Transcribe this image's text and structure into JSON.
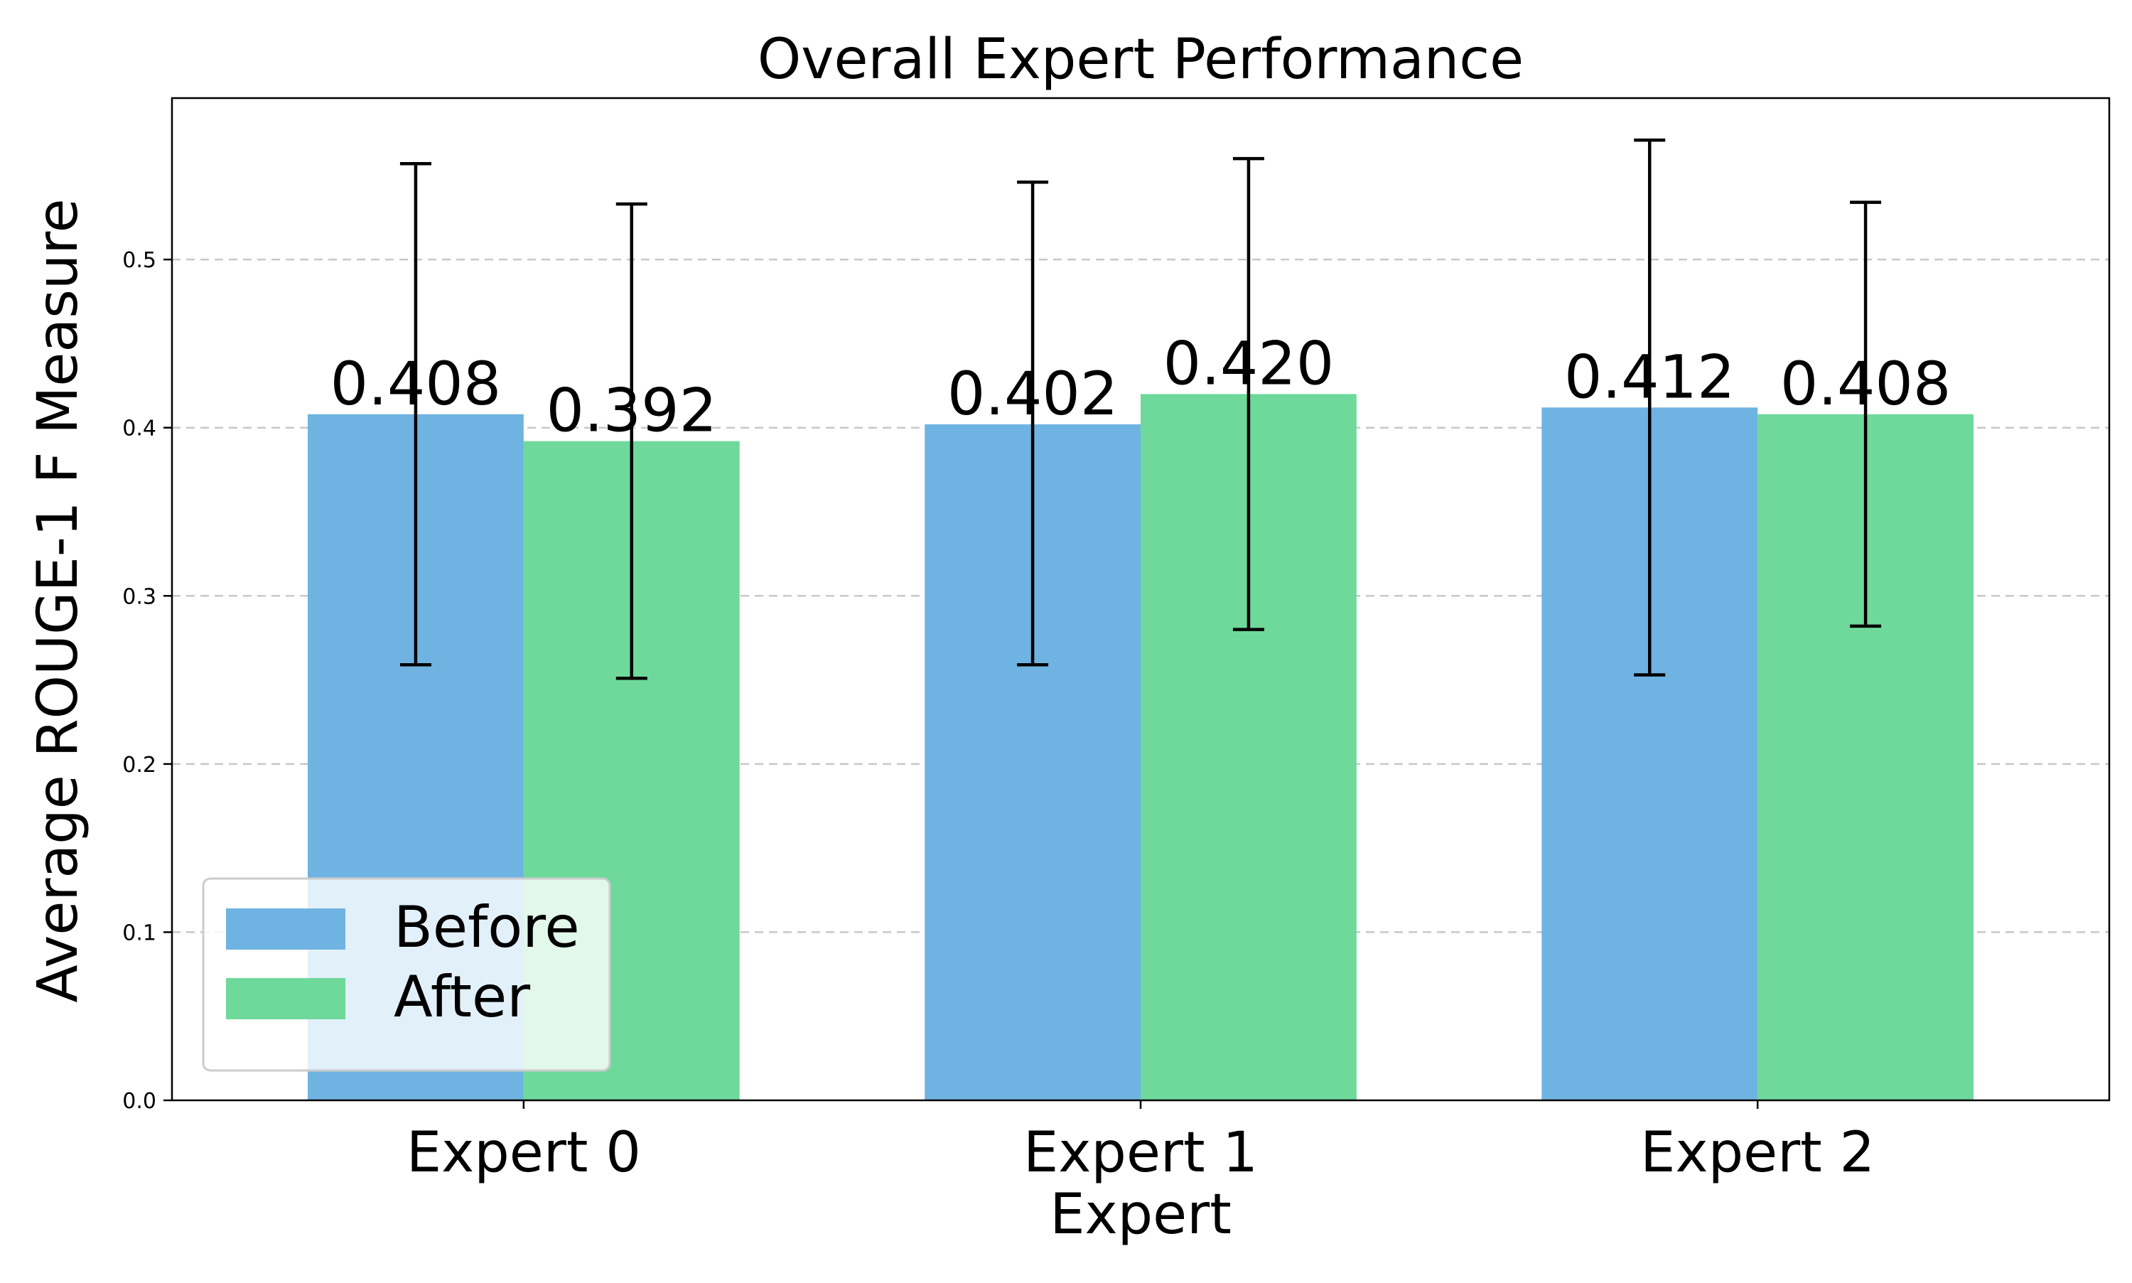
{
  "chart_data": {
    "type": "bar",
    "title": "Overall Expert Performance",
    "xlabel": "Expert",
    "ylabel": "Average ROUGE-1 F Measure",
    "categories": [
      "Expert 0",
      "Expert 1",
      "Expert 2"
    ],
    "series": [
      {
        "name": "Before",
        "values": [
          0.408,
          0.402,
          0.412
        ],
        "error_low": [
          0.259,
          0.259,
          0.253
        ],
        "error_high": [
          0.557,
          0.546,
          0.571
        ],
        "labels": [
          "0.408",
          "0.402",
          "0.412"
        ],
        "color": "#6fb3e2"
      },
      {
        "name": "After",
        "values": [
          0.392,
          0.42,
          0.408
        ],
        "error_low": [
          0.251,
          0.28,
          0.282
        ],
        "error_high": [
          0.533,
          0.56,
          0.534
        ],
        "labels": [
          "0.392",
          "0.420",
          "0.408"
        ],
        "color": "#6ed99a"
      }
    ],
    "ylim": [
      0.0,
      0.596
    ],
    "yticks": [
      "0.0",
      "0.1",
      "0.2",
      "0.3",
      "0.4",
      "0.5"
    ],
    "grid": "y-dashed",
    "legend_position": "lower-left"
  }
}
